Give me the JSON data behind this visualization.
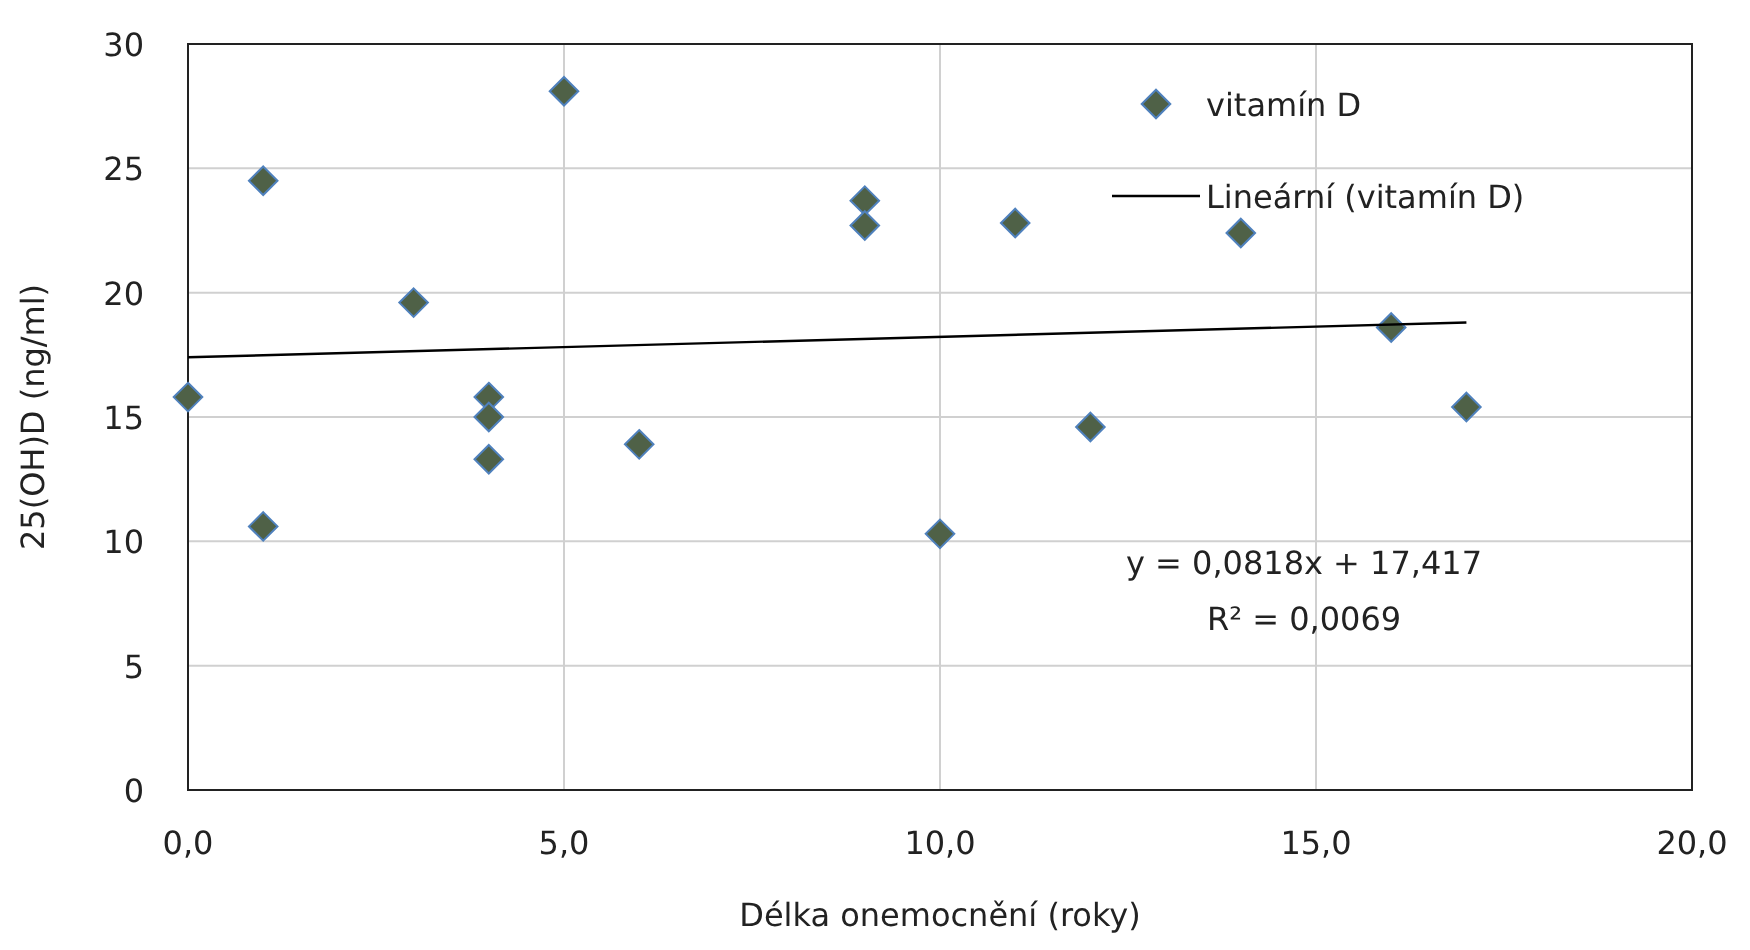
{
  "chart_data": {
    "type": "scatter",
    "xlabel": "Délka onemocnění (roky)",
    "ylabel": "25(OH)D (ng/ml)",
    "xlim": [
      0,
      20
    ],
    "xticks": [
      {
        "value": 0,
        "label": "0,0"
      },
      {
        "value": 5,
        "label": "5,0"
      },
      {
        "value": 10,
        "label": "10,0"
      },
      {
        "value": 15,
        "label": "15,0"
      },
      {
        "value": 20,
        "label": "20,0"
      }
    ],
    "ylim": [
      0,
      30
    ],
    "yticks": [
      0,
      5,
      10,
      15,
      20,
      25,
      30
    ],
    "grid": true,
    "legend": "top right",
    "series": [
      {
        "name": "vitamín D",
        "marker": "diamond",
        "color": "#4f6147",
        "x": [
          0,
          1,
          1,
          3,
          4,
          4,
          4,
          5,
          6,
          9,
          9,
          10,
          11,
          12,
          14,
          16,
          17
        ],
        "values": [
          15.8,
          24.5,
          10.6,
          19.6,
          15.8,
          15.0,
          13.3,
          28.1,
          13.9,
          23.7,
          22.7,
          10.3,
          22.8,
          14.6,
          22.4,
          18.6,
          15.4
        ]
      },
      {
        "name": "Lineární (vitamín D)",
        "type": "line",
        "marker": "none",
        "color": "#000000",
        "x": [
          0,
          17
        ],
        "values": [
          17.4,
          18.8
        ]
      }
    ],
    "annotations": [
      "y = 0,0818x + 17,417",
      "R² = 0,0069"
    ]
  }
}
